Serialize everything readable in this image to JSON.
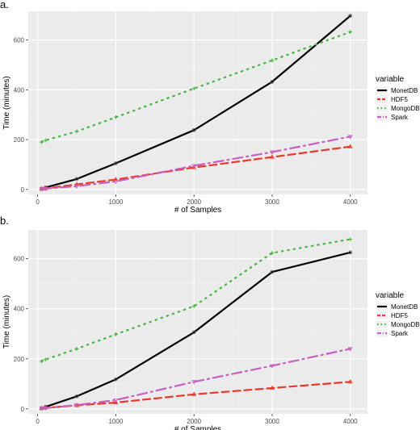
{
  "chart_data": [
    {
      "panel_label": "a.",
      "type": "line",
      "xlabel": "# of Samples",
      "ylabel": "Time (minutes)",
      "xlim": [
        -120,
        4220
      ],
      "ylim": [
        -20,
        715
      ],
      "x_ticks": [
        0,
        1000,
        2000,
        3000,
        4000
      ],
      "y_ticks": [
        0,
        200,
        400,
        600
      ],
      "grid": true,
      "legend_title": "variable",
      "legend_position": "right",
      "x": [
        50,
        100,
        500,
        1000,
        2000,
        3000,
        4000
      ],
      "series": [
        {
          "name": "MonetDB",
          "color": "#000000",
          "dash": "solid",
          "marker": "circle",
          "values": [
            3,
            8,
            42,
            105,
            238,
            432,
            697
          ]
        },
        {
          "name": "HDF5",
          "color": "#e8392b",
          "dash": "dashed",
          "marker": "triangle",
          "values": [
            2,
            4,
            20,
            40,
            88,
            130,
            172
          ]
        },
        {
          "name": "MongoDB",
          "color": "#44b53f",
          "dash": "dotted",
          "marker": "plus",
          "values": [
            190,
            197,
            233,
            290,
            405,
            518,
            632
          ]
        },
        {
          "name": "Spark",
          "color": "#c75fc0",
          "dash": "dashdot",
          "marker": "triangle-down",
          "values": [
            2,
            3,
            13,
            32,
            95,
            150,
            212
          ]
        }
      ]
    },
    {
      "panel_label": "b.",
      "type": "line",
      "xlabel": "# of Samples",
      "ylabel": "Time (minutes)",
      "xlim": [
        -120,
        4220
      ],
      "ylim": [
        -20,
        715
      ],
      "x_ticks": [
        0,
        1000,
        2000,
        3000,
        4000
      ],
      "y_ticks": [
        0,
        200,
        400,
        600
      ],
      "grid": true,
      "legend_title": "variable",
      "legend_position": "right",
      "x": [
        50,
        100,
        500,
        1000,
        2000,
        3000,
        4000
      ],
      "series": [
        {
          "name": "MonetDB",
          "color": "#000000",
          "dash": "solid",
          "marker": "circle",
          "values": [
            3,
            8,
            50,
            118,
            306,
            547,
            625
          ]
        },
        {
          "name": "HDF5",
          "color": "#e8392b",
          "dash": "dashed",
          "marker": "triangle",
          "values": [
            2,
            4,
            14,
            25,
            58,
            83,
            108
          ]
        },
        {
          "name": "MongoDB",
          "color": "#44b53f",
          "dash": "dotted",
          "marker": "plus",
          "values": [
            190,
            197,
            240,
            298,
            410,
            623,
            678
          ]
        },
        {
          "name": "Spark",
          "color": "#c75fc0",
          "dash": "dashdot",
          "marker": "triangle-down",
          "values": [
            2,
            3,
            15,
            35,
            108,
            172,
            240
          ]
        }
      ]
    }
  ]
}
